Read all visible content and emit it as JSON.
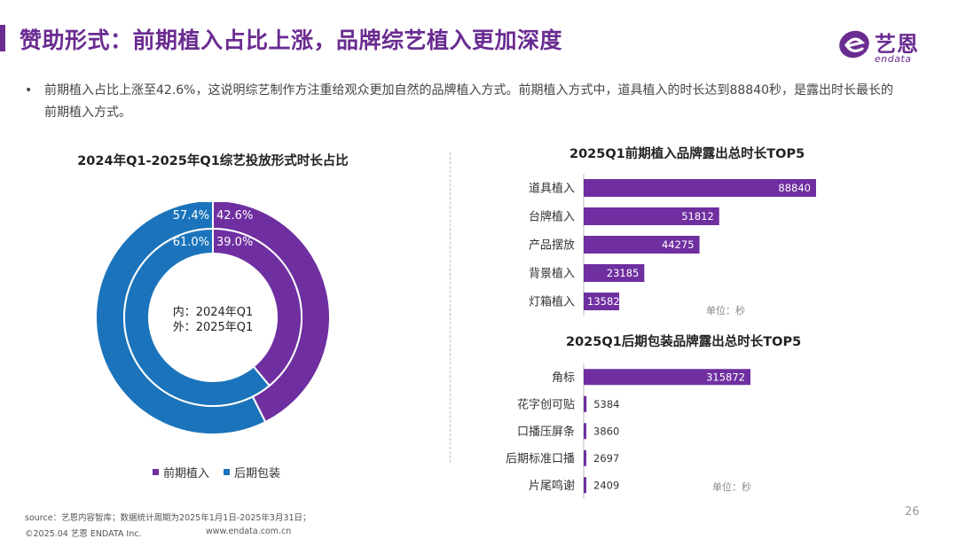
{
  "header": {
    "title": "赞助形式：前期植入占比上涨，品牌综艺植入更加深度",
    "logo_cn": "艺恩",
    "logo_en": "endata"
  },
  "summary": {
    "bullet": "•",
    "text": "前期植入占比上涨至42.6%，这说明综艺制作方注重给观众更加自然的品牌植入方式。前期植入方式中，道具植入的时长达到88840秒，是露出时长最长的前期植入方式。"
  },
  "colors": {
    "brand": "#6a2c91",
    "purple": "#6f2fa0",
    "blue": "#1b74bb"
  },
  "chart_data": [
    {
      "type": "pie",
      "title": "2024年Q1-2025年Q1综艺投放形式时长占比",
      "center_label": [
        "内：2024年Q1",
        "外：2025年Q1"
      ],
      "legend": [
        "前期植入",
        "后期包装"
      ],
      "legend_position": "bottom",
      "series": [
        {
          "name": "外：2025年Q1",
          "labels": [
            "前期植入",
            "后期包装"
          ],
          "values": [
            42.6,
            57.4
          ],
          "display": [
            "42.6%",
            "57.4%"
          ]
        },
        {
          "name": "内：2024年Q1",
          "labels": [
            "前期植入",
            "后期包装"
          ],
          "values": [
            39.0,
            61.0
          ],
          "display": [
            "39.0%",
            "61.0%"
          ]
        }
      ]
    },
    {
      "type": "bar",
      "orientation": "horizontal",
      "title": "2025Q1前期植入品牌露出总时长TOP5",
      "categories": [
        "道具植入",
        "台牌植入",
        "产品摆放",
        "背景植入",
        "灯箱植入"
      ],
      "values": [
        88840,
        51812,
        44275,
        23185,
        13582
      ],
      "unit": "单位：秒"
    },
    {
      "type": "bar",
      "orientation": "horizontal",
      "title": "2025Q1后期包装品牌露出总时长TOP5",
      "categories": [
        "角标",
        "花字创可贴",
        "口播压屏条",
        "后期标准口播",
        "片尾鸣谢"
      ],
      "values": [
        315872,
        5384,
        3860,
        2697,
        2409
      ],
      "unit": "单位：秒"
    }
  ],
  "footer": {
    "source": "source：艺恩内容智库；数据统计周期为2025年1月1日-2025年3月31日；",
    "copyright": "©2025.04 艺恩 ENDATA Inc.",
    "url": "www.endata.com.cn",
    "page": "26"
  }
}
